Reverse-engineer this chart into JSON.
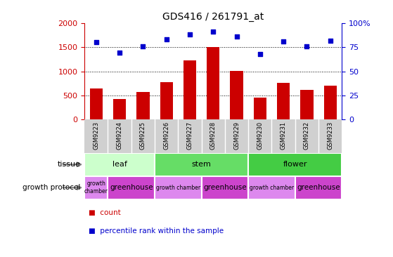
{
  "title": "GDS416 / 261791_at",
  "samples": [
    "GSM9223",
    "GSM9224",
    "GSM9225",
    "GSM9226",
    "GSM9227",
    "GSM9228",
    "GSM9229",
    "GSM9230",
    "GSM9231",
    "GSM9232",
    "GSM9233"
  ],
  "counts": [
    650,
    420,
    575,
    775,
    1225,
    1500,
    1010,
    460,
    755,
    610,
    700
  ],
  "percentiles": [
    80,
    69,
    76,
    83,
    88,
    91,
    86,
    68,
    81,
    76,
    82
  ],
  "ylim_left": [
    0,
    2000
  ],
  "ylim_right": [
    0,
    100
  ],
  "yticks_left": [
    0,
    500,
    1000,
    1500,
    2000
  ],
  "yticks_right": [
    0,
    25,
    50,
    75,
    100
  ],
  "ytick_right_labels": [
    "0",
    "25",
    "50",
    "75",
    "100%"
  ],
  "bar_color": "#cc0000",
  "dot_color": "#0000cc",
  "tissue_groups": [
    {
      "label": "leaf",
      "start": 0,
      "end": 3,
      "color": "#ccffcc"
    },
    {
      "label": "stem",
      "start": 3,
      "end": 7,
      "color": "#66dd66"
    },
    {
      "label": "flower",
      "start": 7,
      "end": 11,
      "color": "#44cc44"
    }
  ],
  "growth_groups": [
    {
      "label": "growth\nchamber",
      "start": 0,
      "end": 1,
      "color": "#dd88ee",
      "small": true
    },
    {
      "label": "greenhouse",
      "start": 1,
      "end": 3,
      "color": "#cc44cc",
      "small": false
    },
    {
      "label": "growth chamber",
      "start": 3,
      "end": 5,
      "color": "#dd88ee",
      "small": true
    },
    {
      "label": "greenhouse",
      "start": 5,
      "end": 7,
      "color": "#cc44cc",
      "small": false
    },
    {
      "label": "growth chamber",
      "start": 7,
      "end": 9,
      "color": "#dd88ee",
      "small": true
    },
    {
      "label": "greenhouse",
      "start": 9,
      "end": 11,
      "color": "#cc44cc",
      "small": false
    }
  ],
  "legend_count_color": "#cc0000",
  "legend_pct_color": "#0000cc",
  "grid_color": "#000000",
  "tick_label_color_left": "#cc0000",
  "tick_label_color_right": "#0000cc",
  "bg_color_samples": "#d0d0d0"
}
